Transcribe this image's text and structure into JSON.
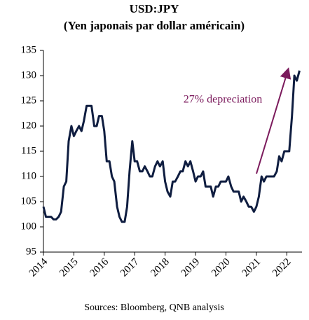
{
  "chart_data": {
    "type": "line",
    "title": "USD:JPY",
    "subtitle": "(Yen japonais par dollar américain)",
    "source": "Sources: Bloomberg, QNB analysis",
    "annotation": "27% depreciation",
    "color": "#0f1d40",
    "x": [
      2014.0,
      2014.08,
      2014.17,
      2014.25,
      2014.33,
      2014.42,
      2014.5,
      2014.58,
      2014.67,
      2014.75,
      2014.83,
      2014.92,
      2015.0,
      2015.08,
      2015.17,
      2015.25,
      2015.33,
      2015.42,
      2015.5,
      2015.58,
      2015.67,
      2015.75,
      2015.83,
      2015.92,
      2016.0,
      2016.08,
      2016.17,
      2016.25,
      2016.33,
      2016.42,
      2016.5,
      2016.58,
      2016.67,
      2016.75,
      2016.83,
      2016.92,
      2017.0,
      2017.08,
      2017.17,
      2017.25,
      2017.33,
      2017.42,
      2017.5,
      2017.58,
      2017.67,
      2017.75,
      2017.83,
      2017.92,
      2018.0,
      2018.08,
      2018.17,
      2018.25,
      2018.33,
      2018.42,
      2018.5,
      2018.58,
      2018.67,
      2018.75,
      2018.83,
      2018.92,
      2019.0,
      2019.08,
      2019.17,
      2019.25,
      2019.33,
      2019.42,
      2019.5,
      2019.58,
      2019.67,
      2019.75,
      2019.83,
      2019.92,
      2020.0,
      2020.08,
      2020.17,
      2020.25,
      2020.33,
      2020.42,
      2020.5,
      2020.58,
      2020.67,
      2020.75,
      2020.83,
      2020.92,
      2021.0,
      2021.08,
      2021.17,
      2021.25,
      2021.33,
      2021.42,
      2021.5,
      2021.58,
      2021.67,
      2021.75,
      2021.83,
      2021.92,
      2022.0,
      2022.08,
      2022.17,
      2022.25,
      2022.33,
      2022.42
    ],
    "values": [
      104,
      102,
      102,
      102,
      101.5,
      101.5,
      102,
      103,
      108,
      109,
      117,
      120,
      118,
      119,
      120,
      119,
      121,
      124,
      124,
      124,
      120,
      120,
      122,
      122,
      119,
      113,
      113,
      110,
      109,
      104,
      102,
      101,
      101,
      104,
      111,
      117,
      113,
      113,
      111,
      111,
      112,
      111,
      110,
      110,
      112,
      113,
      112,
      113,
      109,
      107,
      106,
      109,
      109,
      110,
      111,
      111,
      113,
      112,
      113,
      111,
      109,
      110,
      110,
      111,
      108,
      108,
      108,
      106,
      108,
      108,
      109,
      109,
      109,
      110,
      108,
      107,
      107,
      107,
      105,
      106,
      105,
      104,
      104,
      103,
      104,
      106,
      110,
      109,
      110,
      110,
      110,
      110,
      111,
      114,
      113,
      115,
      115,
      115,
      122,
      130,
      129,
      131
    ],
    "xlim": [
      2014,
      2022.5
    ],
    "xticks": [
      2014,
      2015,
      2016,
      2017,
      2018,
      2019,
      2020,
      2021,
      2022
    ],
    "ylim": [
      95,
      135
    ],
    "yticks": [
      95,
      100,
      105,
      110,
      115,
      120,
      125,
      130,
      135
    ],
    "grid": false
  }
}
